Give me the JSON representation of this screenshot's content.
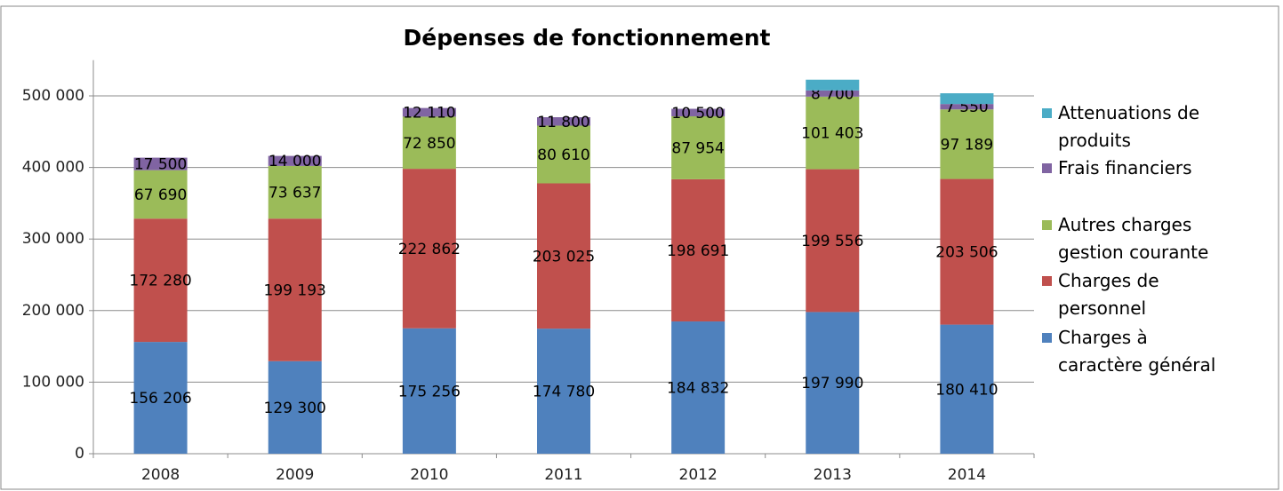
{
  "chart_data": {
    "type": "bar",
    "stacked": true,
    "title": "Dépenses de fonctionnement",
    "categories": [
      "2008",
      "2009",
      "2010",
      "2011",
      "2012",
      "2013",
      "2014"
    ],
    "series": [
      {
        "name": "Charges à caractère général",
        "color": "#4f81bd",
        "values": [
          156206,
          129300,
          175256,
          174780,
          184832,
          197990,
          180410
        ],
        "value_labels": [
          "156 206",
          "129 300",
          "175 256",
          "174 780",
          "184 832",
          "197 990",
          "180 410"
        ]
      },
      {
        "name": "Charges de personnel",
        "color": "#c0504d",
        "values": [
          172280,
          199193,
          222862,
          203025,
          198691,
          199556,
          203506
        ],
        "value_labels": [
          "172 280",
          "199 193",
          "222 862",
          "203 025",
          "198 691",
          "199 556",
          "203 506"
        ]
      },
      {
        "name": "Autres charges gestion courante",
        "color": "#9bbb59",
        "values": [
          67690,
          73637,
          72850,
          80610,
          87954,
          101403,
          97189
        ],
        "value_labels": [
          "67 690",
          "73 637",
          "72 850",
          "80 610",
          "87 954",
          "101 403",
          "97 189"
        ]
      },
      {
        "name": "Frais financiers",
        "color": "#8064a2",
        "values": [
          17500,
          14000,
          12110,
          11800,
          10500,
          8700,
          7550
        ],
        "value_labels": [
          "17 500",
          "14 000",
          "12 110",
          "11 800",
          "10 500",
          "8 700",
          "7 550"
        ]
      },
      {
        "name": "Attenuations de produits",
        "color": "#4bacc6",
        "values": [
          null,
          null,
          null,
          null,
          null,
          15000,
          15000
        ]
      }
    ],
    "ylim": [
      0,
      550000
    ],
    "yticks": [
      0,
      {
        "value": 100000,
        "label": "100 000"
      },
      {
        "value": 200000,
        "label": "200 000"
      },
      {
        "value": 300000,
        "label": "300 000"
      },
      {
        "value": 400000,
        "label": "400 000"
      },
      {
        "value": 500000,
        "label": "500 000"
      }
    ],
    "grid": true,
    "legend": "right"
  }
}
